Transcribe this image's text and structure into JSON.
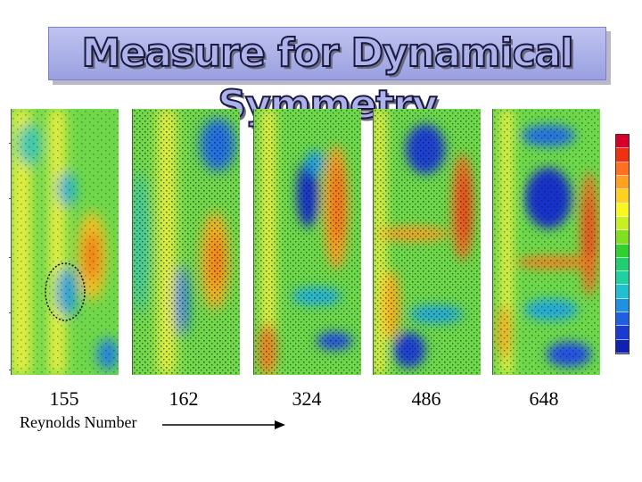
{
  "title": "Measure for Dynamical Symmetry",
  "axis_label": "Reynolds Number",
  "reynolds_numbers": [
    "155",
    "162",
    "324",
    "486",
    "648"
  ],
  "colorbar_colors": [
    "#d8002a",
    "#f03010",
    "#ff7020",
    "#ffa020",
    "#ffd020",
    "#f8f820",
    "#c8f020",
    "#80e020",
    "#30d030",
    "#20d070",
    "#20d0a0",
    "#20c0d0",
    "#2090e0",
    "#2060e0",
    "#1a3ad0",
    "#1020b0"
  ]
}
